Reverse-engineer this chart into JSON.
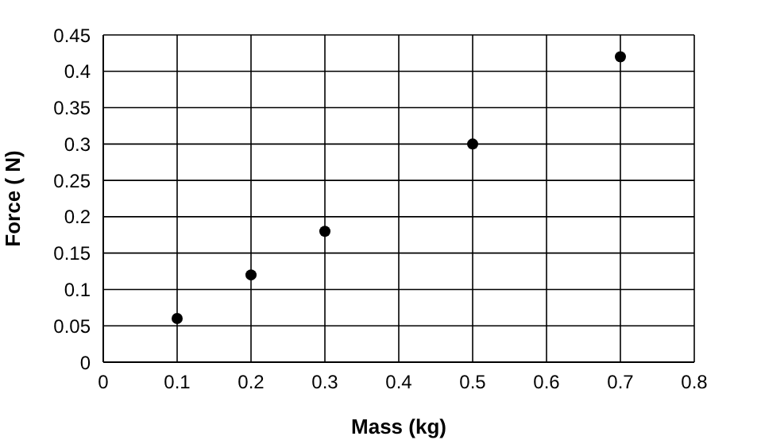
{
  "chart_data": {
    "type": "scatter",
    "xlabel": "Mass (kg)",
    "ylabel": "Force ( N)",
    "x": [
      0.1,
      0.2,
      0.3,
      0.5,
      0.7
    ],
    "series": [
      {
        "color": "#000000",
        "values": [
          0.06,
          0.12,
          0.18,
          0.3,
          0.42
        ]
      }
    ],
    "xlim": [
      0,
      0.8
    ],
    "xticks": [
      0,
      0.1,
      0.2,
      0.3,
      0.4,
      0.5,
      0.6,
      0.7,
      0.8
    ],
    "ylim": [
      0,
      0.45
    ],
    "yticks": [
      0,
      0.05,
      0.1,
      0.15,
      0.2,
      0.25,
      0.3,
      0.35,
      0.4,
      0.45
    ],
    "grid": true,
    "marker": "circle",
    "legend": false
  }
}
